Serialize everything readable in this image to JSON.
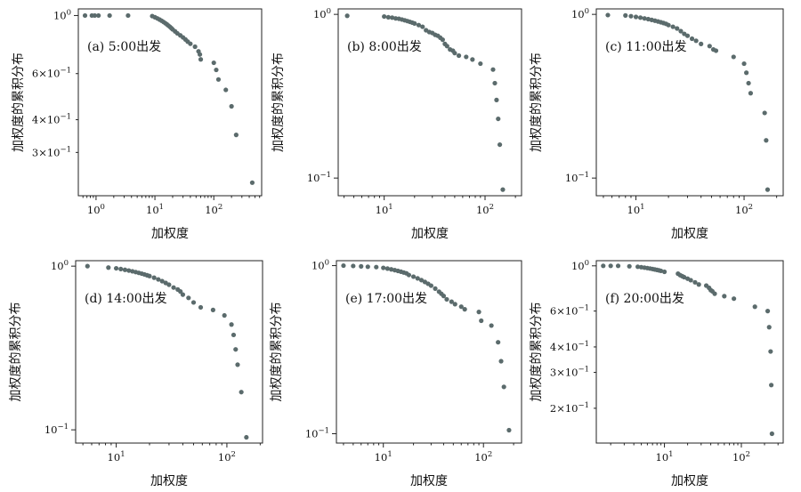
{
  "colors": {
    "point": "#5b6b6c",
    "axis": "#222222"
  },
  "chart_data": [
    {
      "type": "scatter",
      "annotation": "(a) 5:00出发",
      "xlabel": "加权度",
      "ylabel": "加权度的累积分布",
      "xscale": "log",
      "yscale": "log",
      "xlim": [
        0.5,
        650
      ],
      "ylim": [
        0.205,
        1.06
      ],
      "xticks": [
        {
          "v": 1,
          "base": "10",
          "exp": "0"
        },
        {
          "v": 10,
          "base": "10",
          "exp": "1"
        },
        {
          "v": 100,
          "base": "10",
          "exp": "2"
        }
      ],
      "yticks": [
        {
          "v": 1,
          "base": "10",
          "exp": "0",
          "mant": ""
        },
        {
          "v": 0.6,
          "base": "10",
          "exp": "−1",
          "mant": "6×"
        },
        {
          "v": 0.4,
          "base": "10",
          "exp": "−1",
          "mant": "4×"
        },
        {
          "v": 0.3,
          "base": "10",
          "exp": "−1",
          "mant": "3×"
        }
      ],
      "x": [
        0.65,
        0.85,
        0.95,
        1.1,
        1.7,
        3.5,
        9,
        10,
        11,
        12,
        13,
        14,
        15,
        16,
        17,
        18,
        19,
        20,
        22,
        24,
        27,
        30,
        33,
        36,
        40,
        48,
        55,
        58,
        60,
        100,
        110,
        120,
        160,
        200,
        240,
        450
      ],
      "y": [
        1.0,
        1.0,
        1.0,
        1.0,
        1.0,
        1.0,
        0.995,
        0.985,
        0.975,
        0.965,
        0.955,
        0.945,
        0.935,
        0.925,
        0.915,
        0.905,
        0.895,
        0.885,
        0.87,
        0.855,
        0.84,
        0.825,
        0.81,
        0.795,
        0.78,
        0.76,
        0.73,
        0.71,
        0.68,
        0.66,
        0.62,
        0.57,
        0.52,
        0.45,
        0.35,
        0.23
      ]
    },
    {
      "type": "scatter",
      "annotation": "(b) 8:00出发",
      "xlabel": "加权度",
      "ylabel": "加权度的累积分布",
      "xscale": "log",
      "yscale": "log",
      "xlim": [
        3.5,
        230
      ],
      "ylim": [
        0.078,
        1.08
      ],
      "xticks": [
        {
          "v": 10,
          "base": "10",
          "exp": "1"
        },
        {
          "v": 100,
          "base": "10",
          "exp": "2"
        }
      ],
      "yticks": [
        {
          "v": 1,
          "base": "10",
          "exp": "0",
          "mant": ""
        },
        {
          "v": 0.1,
          "base": "10",
          "exp": "−1",
          "mant": ""
        }
      ],
      "x": [
        4.3,
        10,
        11,
        12,
        13,
        14,
        15,
        16,
        17,
        18,
        19,
        20,
        22,
        24,
        26,
        28,
        30,
        32,
        34,
        36,
        38,
        40,
        42,
        45,
        48,
        50,
        55,
        65,
        75,
        90,
        120,
        125,
        130,
        135,
        140,
        150
      ],
      "y": [
        0.98,
        0.97,
        0.96,
        0.955,
        0.945,
        0.94,
        0.93,
        0.92,
        0.91,
        0.9,
        0.89,
        0.88,
        0.86,
        0.84,
        0.8,
        0.78,
        0.77,
        0.75,
        0.74,
        0.72,
        0.7,
        0.66,
        0.64,
        0.61,
        0.6,
        0.58,
        0.56,
        0.55,
        0.53,
        0.5,
        0.46,
        0.38,
        0.3,
        0.23,
        0.16,
        0.085
      ]
    },
    {
      "type": "scatter",
      "annotation": "(c) 11:00出发",
      "xlabel": "加权度",
      "ylabel": "加权度的累积分布",
      "xscale": "log",
      "yscale": "log",
      "xlim": [
        4.3,
        230
      ],
      "ylim": [
        0.078,
        1.08
      ],
      "xticks": [
        {
          "v": 10,
          "base": "10",
          "exp": "1"
        },
        {
          "v": 100,
          "base": "10",
          "exp": "2"
        }
      ],
      "yticks": [
        {
          "v": 1,
          "base": "10",
          "exp": "0",
          "mant": ""
        },
        {
          "v": 0.1,
          "base": "10",
          "exp": "−1",
          "mant": ""
        }
      ],
      "x": [
        5.5,
        8,
        9,
        10,
        11,
        12,
        13,
        14,
        15,
        16,
        17,
        18,
        19,
        20,
        22,
        24,
        26,
        28,
        30,
        33,
        36,
        40,
        48,
        52,
        55,
        80,
        100,
        105,
        110,
        115,
        155,
        160,
        165
      ],
      "y": [
        0.99,
        0.985,
        0.975,
        0.965,
        0.955,
        0.945,
        0.935,
        0.925,
        0.915,
        0.905,
        0.895,
        0.885,
        0.875,
        0.86,
        0.84,
        0.82,
        0.79,
        0.76,
        0.74,
        0.71,
        0.69,
        0.66,
        0.64,
        0.61,
        0.6,
        0.55,
        0.5,
        0.44,
        0.38,
        0.33,
        0.25,
        0.17,
        0.085
      ]
    },
    {
      "type": "scatter",
      "annotation": "(d) 14:00出发",
      "xlabel": "加权度",
      "ylabel": "加权度的累积分布",
      "xscale": "log",
      "yscale": "log",
      "xlim": [
        4.3,
        210
      ],
      "ylim": [
        0.083,
        1.08
      ],
      "xticks": [
        {
          "v": 10,
          "base": "10",
          "exp": "1"
        },
        {
          "v": 100,
          "base": "10",
          "exp": "2"
        }
      ],
      "yticks": [
        {
          "v": 1,
          "base": "10",
          "exp": "0",
          "mant": ""
        },
        {
          "v": 0.1,
          "base": "10",
          "exp": "−1",
          "mant": ""
        }
      ],
      "x": [
        5.5,
        8.5,
        10,
        11,
        12,
        13,
        14,
        15,
        16,
        17,
        18,
        19,
        20,
        22,
        24,
        26,
        28,
        30,
        33,
        36,
        38,
        40,
        45,
        50,
        58,
        75,
        95,
        110,
        115,
        120,
        125,
        135,
        150
      ],
      "y": [
        1.0,
        0.98,
        0.97,
        0.96,
        0.95,
        0.94,
        0.93,
        0.92,
        0.91,
        0.9,
        0.89,
        0.88,
        0.87,
        0.85,
        0.83,
        0.81,
        0.79,
        0.77,
        0.74,
        0.72,
        0.7,
        0.67,
        0.64,
        0.6,
        0.56,
        0.54,
        0.5,
        0.44,
        0.38,
        0.31,
        0.25,
        0.17,
        0.09
      ]
    },
    {
      "type": "scatter",
      "annotation": "(e) 17:00出发",
      "xlabel": "加权度",
      "ylabel": "加权度的累积分布",
      "xscale": "log",
      "yscale": "log",
      "xlim": [
        3.4,
        240
      ],
      "ylim": [
        0.088,
        1.07
      ],
      "xticks": [
        {
          "v": 10,
          "base": "10",
          "exp": "1"
        },
        {
          "v": 100,
          "base": "10",
          "exp": "2"
        }
      ],
      "yticks": [
        {
          "v": 1,
          "base": "10",
          "exp": "0",
          "mant": ""
        },
        {
          "v": 0.1,
          "base": "10",
          "exp": "−1",
          "mant": ""
        }
      ],
      "x": [
        4,
        5,
        6,
        7,
        8.5,
        10,
        11,
        12,
        13,
        14,
        15,
        16,
        17,
        18,
        20,
        22,
        24,
        26,
        28,
        30,
        33,
        36,
        38,
        40,
        43,
        48,
        52,
        60,
        65,
        90,
        95,
        120,
        140,
        150,
        160,
        180
      ],
      "y": [
        1.0,
        0.995,
        0.99,
        0.985,
        0.98,
        0.97,
        0.96,
        0.95,
        0.94,
        0.93,
        0.92,
        0.91,
        0.9,
        0.88,
        0.86,
        0.84,
        0.82,
        0.8,
        0.78,
        0.76,
        0.73,
        0.7,
        0.68,
        0.66,
        0.63,
        0.61,
        0.59,
        0.57,
        0.55,
        0.53,
        0.47,
        0.44,
        0.35,
        0.27,
        0.19,
        0.105
      ]
    },
    {
      "type": "scatter",
      "annotation": "(f) 20:00出发",
      "xlabel": "加权度",
      "ylabel": "加权度的累积分布",
      "xscale": "log",
      "yscale": "log",
      "xlim": [
        1.3,
        350
      ],
      "ylim": [
        0.135,
        1.06
      ],
      "xticks": [
        {
          "v": 10,
          "base": "10",
          "exp": "1"
        },
        {
          "v": 100,
          "base": "10",
          "exp": "2"
        }
      ],
      "yticks": [
        {
          "v": 1,
          "base": "10",
          "exp": "0",
          "mant": ""
        },
        {
          "v": 0.6,
          "base": "10",
          "exp": "−1",
          "mant": "6×"
        },
        {
          "v": 0.4,
          "base": "10",
          "exp": "−1",
          "mant": "4×"
        },
        {
          "v": 0.3,
          "base": "10",
          "exp": "−1",
          "mant": "3×"
        },
        {
          "v": 0.2,
          "base": "10",
          "exp": "−1",
          "mant": "2×"
        }
      ],
      "x": [
        1.6,
        2,
        2.5,
        3.5,
        4.5,
        5,
        5.5,
        6,
        6.5,
        7,
        7.5,
        8,
        8.5,
        9,
        10,
        15,
        16,
        17,
        18,
        20,
        22,
        25,
        28,
        35,
        38,
        40,
        42,
        45,
        60,
        80,
        150,
        220,
        230,
        240,
        245,
        250
      ],
      "y": [
        1.0,
        1.0,
        1.0,
        0.995,
        0.99,
        0.985,
        0.98,
        0.975,
        0.97,
        0.965,
        0.96,
        0.955,
        0.95,
        0.945,
        0.935,
        0.915,
        0.9,
        0.89,
        0.88,
        0.865,
        0.85,
        0.83,
        0.81,
        0.8,
        0.78,
        0.76,
        0.75,
        0.73,
        0.71,
        0.69,
        0.63,
        0.6,
        0.5,
        0.38,
        0.26,
        0.15
      ]
    }
  ]
}
